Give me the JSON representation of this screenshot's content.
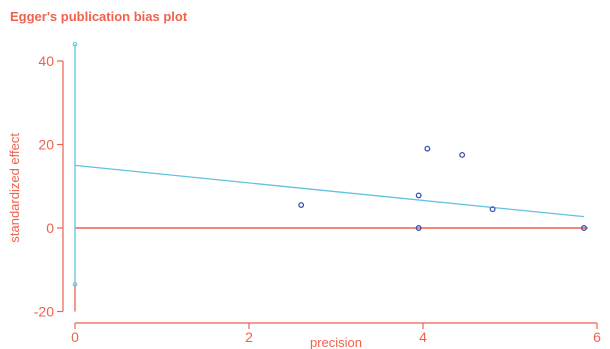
{
  "colors": {
    "axis": "#f0624d",
    "text": "#f0624d",
    "regression": "#5fc4dd",
    "ci_bar": "#5fc4dd",
    "zero_line": "#f0624d",
    "points": "#3b4fb0"
  },
  "chart_data": {
    "type": "scatter",
    "title": "Egger's publication bias plot",
    "xlabel": "precision",
    "ylabel": "standardized effect",
    "xlim": [
      0,
      6
    ],
    "ylim": [
      -20,
      45
    ],
    "x_ticks": [
      0,
      2,
      4,
      6
    ],
    "y_ticks": [
      -20,
      0,
      20,
      40
    ],
    "grid": false,
    "points": [
      {
        "x": 2.6,
        "y": 5.5
      },
      {
        "x": 3.95,
        "y": 7.8
      },
      {
        "x": 3.95,
        "y": 0
      },
      {
        "x": 4.05,
        "y": 19
      },
      {
        "x": 4.45,
        "y": 17.5
      },
      {
        "x": 4.8,
        "y": 4.5
      },
      {
        "x": 5.85,
        "y": 0
      }
    ],
    "regression_line": {
      "intercept": 15,
      "slope": -2.1,
      "x_start": 0,
      "x_end": 5.85
    },
    "intercept_ci": {
      "x": 0,
      "lower": -20,
      "upper": 44,
      "marker_lower": -13.5
    },
    "reference_line_y": 0
  }
}
